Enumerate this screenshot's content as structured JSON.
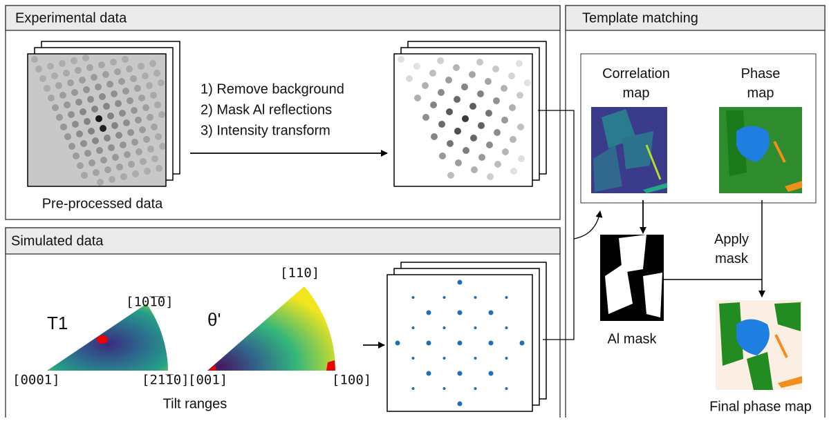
{
  "experimental": {
    "title": "Experimental data",
    "steps": [
      "1) Remove background",
      "2) Mask Al reflections",
      "3) Intensity transform"
    ],
    "caption": "Pre-processed data"
  },
  "simulated": {
    "title": "Simulated data",
    "t1": {
      "label": "T1",
      "corners": [
        "[10̅1̅0]",
        "[0001]",
        "[21̅10]"
      ]
    },
    "theta": {
      "label": "θ'",
      "corners": [
        "[110]",
        "[001]",
        "[100]"
      ]
    },
    "caption": "Tilt ranges"
  },
  "template": {
    "title": "Template matching",
    "correlation": "Correlation map",
    "phase": "Phase map",
    "apply": "Apply mask",
    "mask": "Al mask",
    "final": "Final phase map"
  }
}
